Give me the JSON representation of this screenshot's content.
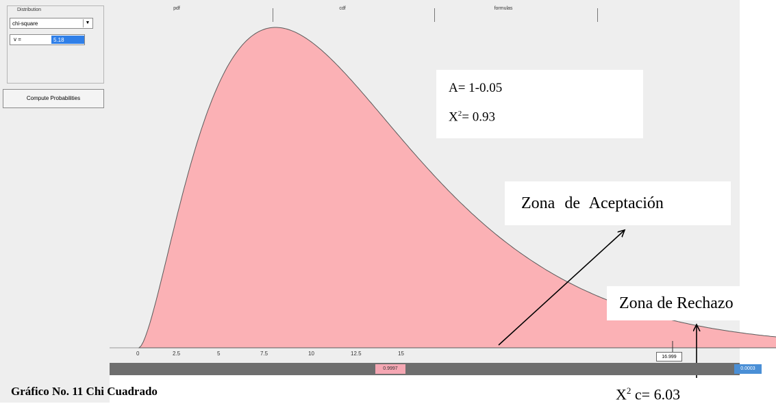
{
  "sidebar": {
    "group_label": "Distribution",
    "distribution_value": "chi-square",
    "param_label": "v =",
    "param_value": "5.18",
    "compute_label": "Compute Probabilities"
  },
  "tabs": [
    {
      "label": "pdf"
    },
    {
      "label": "cdf"
    },
    {
      "label": "formulas"
    }
  ],
  "axis": {
    "ticks": [
      "0",
      "2.5",
      "5",
      "7.5",
      "10",
      "12.5",
      "15"
    ]
  },
  "slider": {
    "left_value": "0.9997",
    "right_value": "0.0003",
    "cut_value": "16.999"
  },
  "info": {
    "line1": "A= 1-0.05",
    "x2_symbol": "X",
    "x2_sup": "2",
    "x2_value": "= 0.93"
  },
  "annotations": {
    "accept": "Zona de Aceptación",
    "reject": "Zona de Rechazo",
    "xc_symbol": "X",
    "xc_sup": "2",
    "xc_value": " c= 6.03",
    "caption": "Gráfico No. 11 Chi Cuadrado"
  },
  "colors": {
    "accept_fill": "#fbb1b5",
    "reject_fill": "#a9cfe8",
    "curve": "#5a5a5a"
  },
  "chart_data": {
    "type": "area",
    "distribution": "chi-square",
    "degrees_of_freedom": 5.18,
    "xlim": [
      0,
      17.5
    ],
    "x_ticks": [
      0,
      2.5,
      5,
      7.5,
      10,
      12.5,
      15
    ],
    "cut_value": 16.999,
    "accept_probability": 0.9997,
    "reject_probability": 0.0003
  }
}
